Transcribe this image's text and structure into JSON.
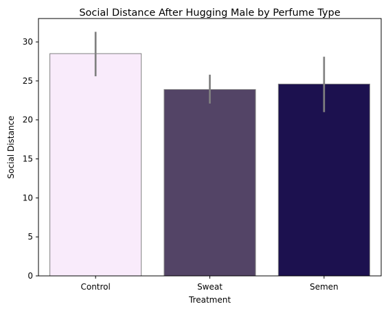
{
  "chart_data": {
    "type": "bar",
    "title": "Social Distance After Hugging Male by Perfume Type",
    "xlabel": "Treatment",
    "ylabel": "Social Distance",
    "categories": [
      "Control",
      "Sweat",
      "Semen"
    ],
    "values": [
      28.5,
      23.9,
      24.6
    ],
    "error_bars": [
      {
        "low": 25.6,
        "high": 31.3
      },
      {
        "low": 22.1,
        "high": 25.8
      },
      {
        "low": 21.0,
        "high": 28.1
      }
    ],
    "colors": [
      "#f9ebfb",
      "#534466",
      "#1c114f"
    ],
    "bar_edge_color": "#808080",
    "error_bar_color": "#808080",
    "ylim": [
      0,
      33
    ],
    "yticks": [
      0,
      5,
      10,
      15,
      20,
      25,
      30
    ],
    "grid": false,
    "legend": "none"
  }
}
